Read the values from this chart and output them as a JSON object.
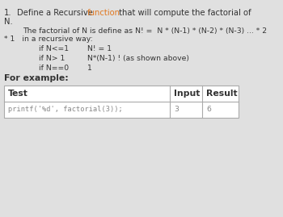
{
  "bg_color": "#e0e0e0",
  "title_num": "1.",
  "title_black1": "Define a Recursive ",
  "title_orange": "function",
  "title_black2": " that will compute the factorial of",
  "line2": "N.",
  "para1a": "The factorial of N is define as N! =  N * (N-1) * (N-2) * (N-3) ... * 2",
  "para1b": "* 1   in a recursive way:",
  "cond1_if": "if N<=1",
  "cond1_val": "N! = 1",
  "cond2_if": "if N> 1",
  "cond2_val": "N*(N-1) ! (as shown above)",
  "cond3_if": "if N==0",
  "cond3_val": "1",
  "for_example": "For example:",
  "th_test": "Test",
  "th_input": "Input",
  "th_result": "Result",
  "td_test": "printf('%d', factorial(3));",
  "td_input": "3",
  "td_result": "6",
  "orange_color": "#e07820",
  "text_color": "#333333",
  "gray_text": "#888888",
  "table_bg": "#ffffff",
  "border_color": "#aaaaaa",
  "fs": 7.2,
  "fs_bold": 7.8,
  "fs_code": 6.2
}
